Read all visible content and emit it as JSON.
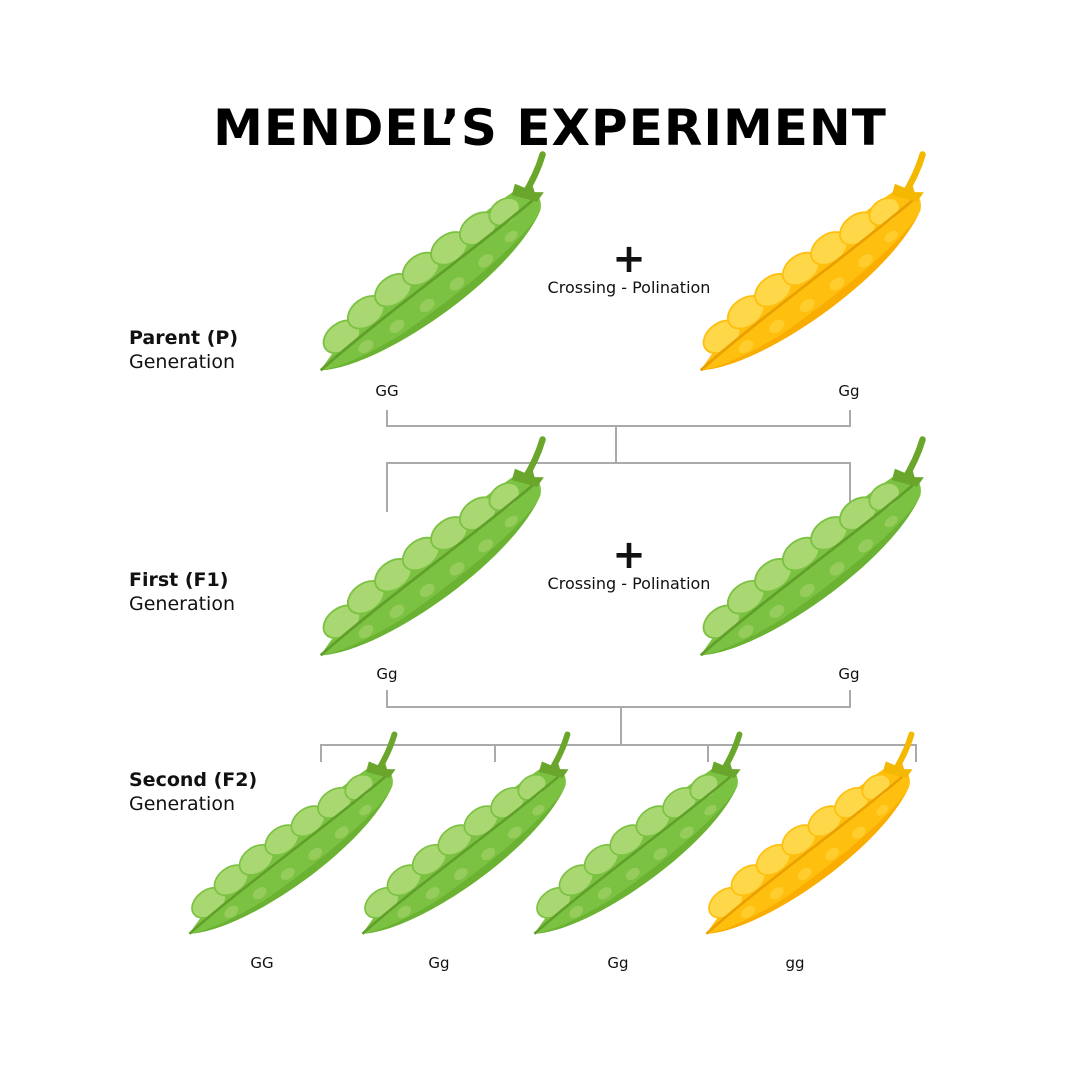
{
  "title": "MENDEL’S EXPERIMENT",
  "generations": [
    {
      "name": "Parent (P)",
      "word": "Generation",
      "cross": {
        "symbol": "+",
        "label": "Crossing - Polination"
      },
      "pods": [
        {
          "genotype": "GG"
        },
        {
          "genotype": "Gg"
        }
      ]
    },
    {
      "name": "First (F1)",
      "word": "Generation",
      "cross": {
        "symbol": "+",
        "label": "Crossing - Polination"
      },
      "pods": [
        {
          "genotype": "Gg"
        },
        {
          "genotype": "Gg"
        }
      ]
    },
    {
      "name": "Second (F2)",
      "word": "Generation",
      "pods": [
        {
          "genotype": "GG"
        },
        {
          "genotype": "Gg"
        },
        {
          "genotype": "Gg"
        },
        {
          "genotype": "gg"
        }
      ]
    }
  ]
}
